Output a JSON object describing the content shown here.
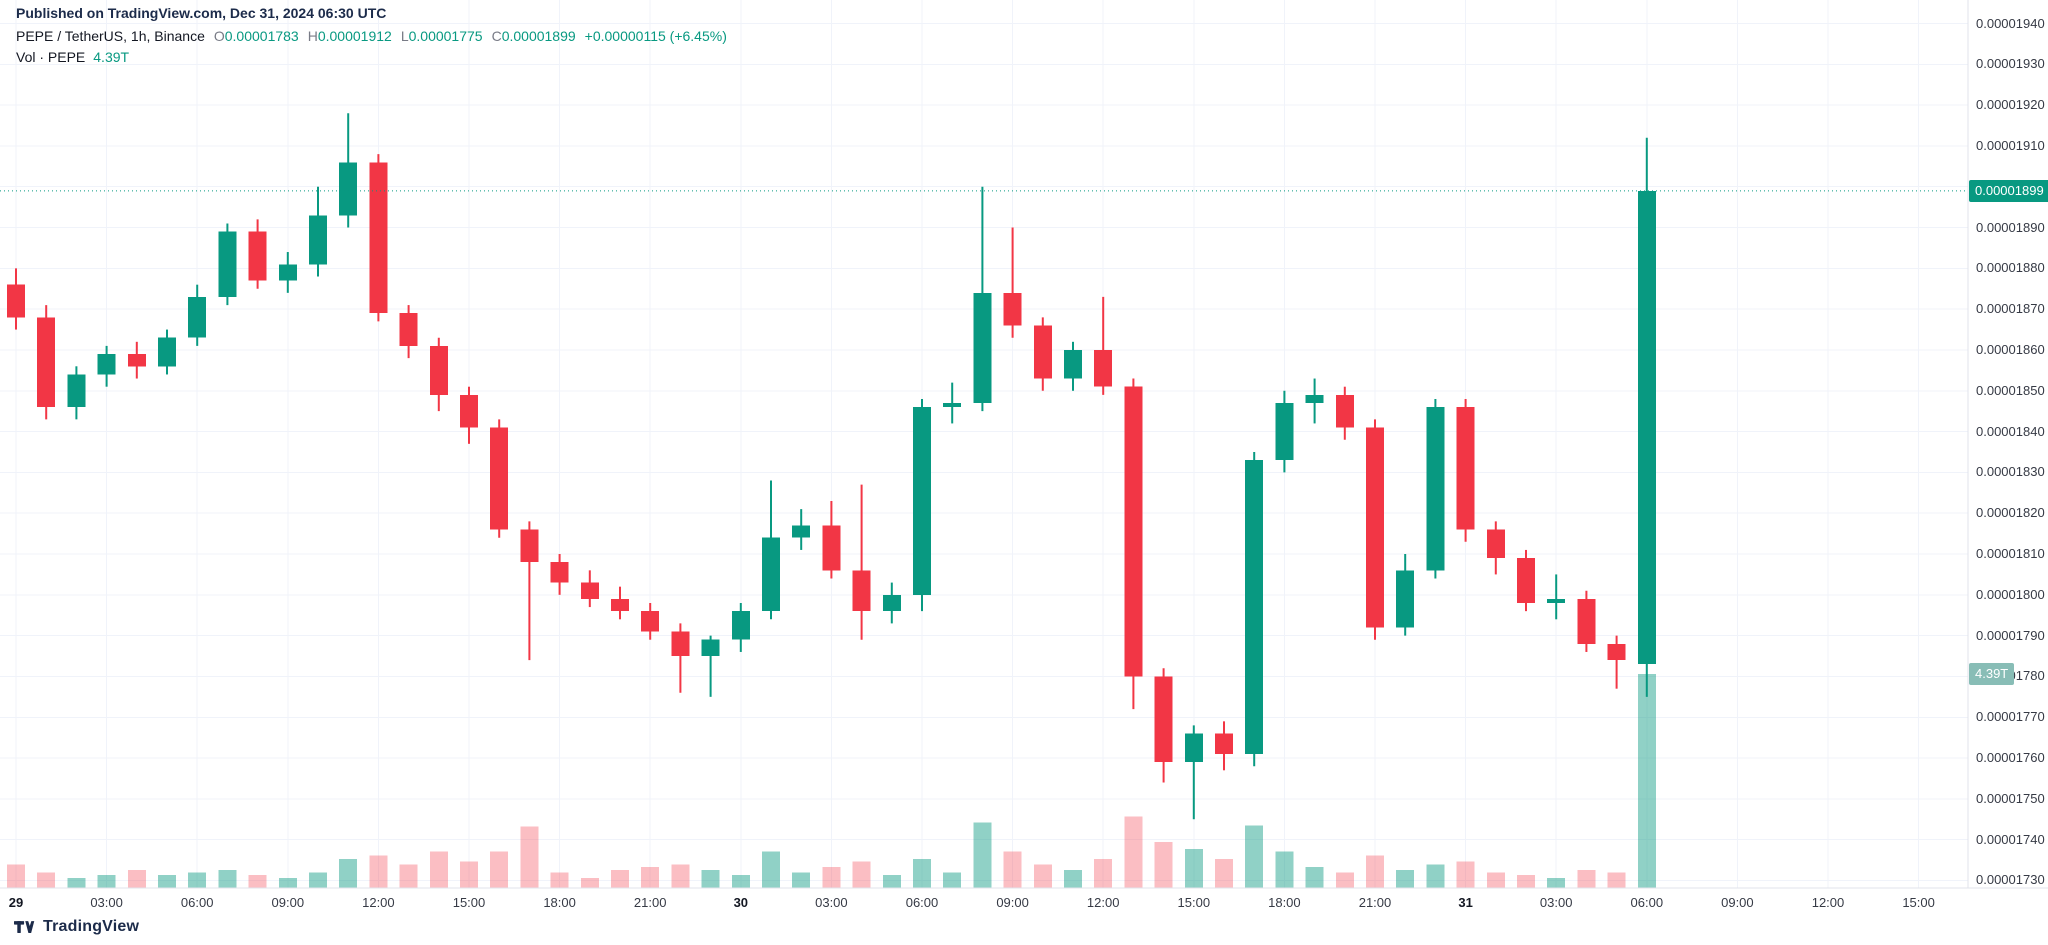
{
  "header": {
    "published": "Published on TradingView.com, Dec 31, 2024 06:30 UTC",
    "symbol_title": "PEPE / TetherUS, 1h, Binance",
    "ohlc": {
      "o_label": "O",
      "o_value": "0.00001783",
      "h_label": "H",
      "h_value": "0.00001912",
      "l_label": "L",
      "l_value": "0.00001775",
      "c_label": "C",
      "c_value": "0.00001899",
      "change": "+0.00000115 (+6.45%)"
    },
    "volume_row": {
      "label": "Vol · PEPE",
      "value": "4.39T"
    }
  },
  "badges": {
    "price_text": "0.00001899",
    "price_bg": "#089981",
    "volume_text": "4.39T",
    "volume_bg": "#88bdb6"
  },
  "footer": {
    "logo_text": "TradingView"
  },
  "chart_data": {
    "type": "candlestick",
    "title": "PEPE / TetherUS, 1h, Binance",
    "symbol": "PEPE/USDT",
    "exchange": "Binance",
    "interval": "1h",
    "price_unit": 1e-08,
    "ylim": [
      1730,
      1940
    ],
    "last_price_value": 1899,
    "grid": true,
    "legend_position": "top-left",
    "price_ticks": [
      {
        "text": "0.00001940",
        "value": 1940
      },
      {
        "text": "0.00001930",
        "value": 1930
      },
      {
        "text": "0.00001920",
        "value": 1920
      },
      {
        "text": "0.00001910",
        "value": 1910
      },
      {
        "text": "0.00001900",
        "value": 1900
      },
      {
        "text": "0.00001890",
        "value": 1890
      },
      {
        "text": "0.00001880",
        "value": 1880
      },
      {
        "text": "0.00001870",
        "value": 1870
      },
      {
        "text": "0.00001860",
        "value": 1860
      },
      {
        "text": "0.00001850",
        "value": 1850
      },
      {
        "text": "0.00001840",
        "value": 1840
      },
      {
        "text": "0.00001830",
        "value": 1830
      },
      {
        "text": "0.00001820",
        "value": 1820
      },
      {
        "text": "0.00001810",
        "value": 1810
      },
      {
        "text": "0.00001800",
        "value": 1800
      },
      {
        "text": "0.00001790",
        "value": 1790
      },
      {
        "text": "0.00001780",
        "value": 1780
      },
      {
        "text": "0.00001770",
        "value": 1770
      },
      {
        "text": "0.00001760",
        "value": 1760
      },
      {
        "text": "0.00001750",
        "value": 1750
      },
      {
        "text": "0.00001740",
        "value": 1740
      },
      {
        "text": "0.00001730",
        "value": 1730
      }
    ],
    "time_ticks": [
      {
        "t": "29",
        "i": 0,
        "major": true
      },
      {
        "t": "03:00",
        "i": 3,
        "major": false
      },
      {
        "t": "06:00",
        "i": 6,
        "major": false
      },
      {
        "t": "09:00",
        "i": 9,
        "major": false
      },
      {
        "t": "12:00",
        "i": 12,
        "major": false
      },
      {
        "t": "15:00",
        "i": 15,
        "major": false
      },
      {
        "t": "18:00",
        "i": 18,
        "major": false
      },
      {
        "t": "21:00",
        "i": 21,
        "major": false
      },
      {
        "t": "30",
        "i": 24,
        "major": true
      },
      {
        "t": "03:00",
        "i": 27,
        "major": false
      },
      {
        "t": "06:00",
        "i": 30,
        "major": false
      },
      {
        "t": "09:00",
        "i": 33,
        "major": false
      },
      {
        "t": "12:00",
        "i": 36,
        "major": false
      },
      {
        "t": "15:00",
        "i": 39,
        "major": false
      },
      {
        "t": "18:00",
        "i": 42,
        "major": false
      },
      {
        "t": "21:00",
        "i": 45,
        "major": false
      },
      {
        "t": "31",
        "i": 48,
        "major": true
      },
      {
        "t": "03:00",
        "i": 51,
        "major": false
      },
      {
        "t": "06:00",
        "i": 54,
        "major": false
      },
      {
        "t": "09:00",
        "i": 57,
        "major": false
      },
      {
        "t": "12:00",
        "i": 60,
        "major": false
      },
      {
        "t": "15:00",
        "i": 63,
        "major": false
      }
    ],
    "columns": [
      "open",
      "high",
      "low",
      "close",
      "volume_T"
    ],
    "candles": [
      [
        1876,
        1880,
        1865,
        1868,
        0.48
      ],
      [
        1868,
        1871,
        1843,
        1846,
        0.32
      ],
      [
        1846,
        1856,
        1843,
        1854,
        0.21
      ],
      [
        1854,
        1861,
        1851,
        1859,
        0.27
      ],
      [
        1859,
        1862,
        1853,
        1856,
        0.37
      ],
      [
        1856,
        1865,
        1854,
        1863,
        0.27
      ],
      [
        1863,
        1876,
        1861,
        1873,
        0.32
      ],
      [
        1873,
        1891,
        1871,
        1889,
        0.37
      ],
      [
        1889,
        1892,
        1875,
        1877,
        0.27
      ],
      [
        1877,
        1884,
        1874,
        1881,
        0.21
      ],
      [
        1881,
        1900,
        1878,
        1893,
        0.32
      ],
      [
        1893,
        1918,
        1890,
        1906,
        0.59
      ],
      [
        1906,
        1908,
        1867,
        1869,
        0.67
      ],
      [
        1869,
        1871,
        1858,
        1861,
        0.48
      ],
      [
        1861,
        1863,
        1845,
        1849,
        0.75
      ],
      [
        1849,
        1851,
        1837,
        1841,
        0.54
      ],
      [
        1841,
        1843,
        1814,
        1816,
        0.75
      ],
      [
        1816,
        1818,
        1784,
        1808,
        1.26
      ],
      [
        1808,
        1810,
        1800,
        1803,
        0.32
      ],
      [
        1803,
        1806,
        1797,
        1799,
        0.21
      ],
      [
        1799,
        1802,
        1794,
        1796,
        0.37
      ],
      [
        1796,
        1798,
        1789,
        1791,
        0.43
      ],
      [
        1791,
        1793,
        1776,
        1785,
        0.48
      ],
      [
        1785,
        1790,
        1775,
        1789,
        0.37
      ],
      [
        1789,
        1798,
        1786,
        1796,
        0.27
      ],
      [
        1796,
        1828,
        1794,
        1814,
        0.75
      ],
      [
        1814,
        1821,
        1811,
        1817,
        0.32
      ],
      [
        1817,
        1823,
        1804,
        1806,
        0.43
      ],
      [
        1806,
        1827,
        1789,
        1796,
        0.54
      ],
      [
        1796,
        1803,
        1793,
        1800,
        0.27
      ],
      [
        1800,
        1848,
        1796,
        1846,
        0.59
      ],
      [
        1846,
        1852,
        1842,
        1847,
        0.32
      ],
      [
        1847,
        1900,
        1845,
        1874,
        1.34
      ],
      [
        1874,
        1890,
        1863,
        1866,
        0.75
      ],
      [
        1866,
        1868,
        1850,
        1853,
        0.48
      ],
      [
        1853,
        1862,
        1850,
        1860,
        0.37
      ],
      [
        1860,
        1873,
        1849,
        1851,
        0.59
      ],
      [
        1851,
        1853,
        1772,
        1780,
        1.47
      ],
      [
        1780,
        1782,
        1754,
        1759,
        0.94
      ],
      [
        1759,
        1768,
        1745,
        1766,
        0.8
      ],
      [
        1766,
        1769,
        1757,
        1761,
        0.59
      ],
      [
        1761,
        1835,
        1758,
        1833,
        1.28
      ],
      [
        1833,
        1850,
        1830,
        1847,
        0.75
      ],
      [
        1847,
        1853,
        1842,
        1849,
        0.43
      ],
      [
        1849,
        1851,
        1838,
        1841,
        0.32
      ],
      [
        1841,
        1843,
        1789,
        1792,
        0.67
      ],
      [
        1792,
        1810,
        1790,
        1806,
        0.37
      ],
      [
        1806,
        1848,
        1804,
        1846,
        0.48
      ],
      [
        1846,
        1848,
        1813,
        1816,
        0.54
      ],
      [
        1816,
        1818,
        1805,
        1809,
        0.32
      ],
      [
        1809,
        1811,
        1796,
        1798,
        0.27
      ],
      [
        1798,
        1805,
        1794,
        1799,
        0.21
      ],
      [
        1799,
        1801,
        1786,
        1788,
        0.37
      ],
      [
        1788,
        1790,
        1777,
        1784,
        0.32
      ],
      [
        1783,
        1912,
        1775,
        1899,
        4.39
      ]
    ],
    "colors": {
      "up": "#089981",
      "down": "#f23645",
      "vol_up": "rgba(8,153,129,0.45)",
      "vol_down": "rgba(242,54,69,0.32)",
      "grid": "#f0f3fa",
      "last_price_line": "#089981"
    }
  }
}
